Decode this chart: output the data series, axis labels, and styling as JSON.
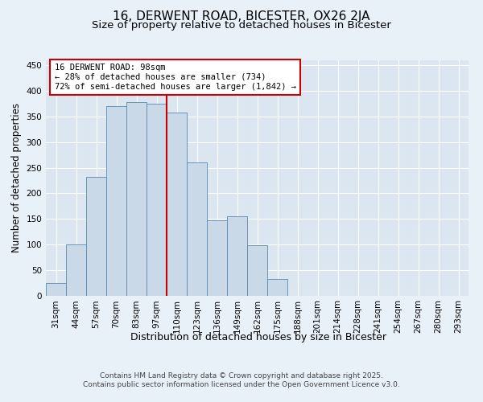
{
  "title1": "16, DERWENT ROAD, BICESTER, OX26 2JA",
  "title2": "Size of property relative to detached houses in Bicester",
  "xlabel": "Distribution of detached houses by size in Bicester",
  "ylabel": "Number of detached properties",
  "bin_labels": [
    "31sqm",
    "44sqm",
    "57sqm",
    "70sqm",
    "83sqm",
    "97sqm",
    "110sqm",
    "123sqm",
    "136sqm",
    "149sqm",
    "162sqm",
    "175sqm",
    "188sqm",
    "201sqm",
    "214sqm",
    "228sqm",
    "241sqm",
    "254sqm",
    "267sqm",
    "280sqm",
    "293sqm"
  ],
  "bar_heights": [
    25,
    100,
    232,
    370,
    378,
    375,
    358,
    260,
    147,
    155,
    98,
    33,
    0,
    0,
    0,
    0,
    0,
    0,
    0,
    0,
    0
  ],
  "bar_color": "#c9d9e8",
  "bar_edge_color": "#5a8ab0",
  "vline_x": 5.5,
  "vline_color": "#cc0000",
  "annotation_text": "16 DERWENT ROAD: 98sqm\n← 28% of detached houses are smaller (734)\n72% of semi-detached houses are larger (1,842) →",
  "annotation_box_color": "#cc0000",
  "yticks": [
    0,
    50,
    100,
    150,
    200,
    250,
    300,
    350,
    400,
    450
  ],
  "ylim": [
    0,
    460
  ],
  "background_color": "#e8f0f8",
  "plot_bg_color": "#dce6f0",
  "footer_line1": "Contains HM Land Registry data © Crown copyright and database right 2025.",
  "footer_line2": "Contains public sector information licensed under the Open Government Licence v3.0.",
  "title1_fontsize": 11,
  "title2_fontsize": 9.5,
  "xlabel_fontsize": 9,
  "ylabel_fontsize": 8.5,
  "tick_fontsize": 7.5,
  "annotation_fontsize": 7.5,
  "footer_fontsize": 6.5
}
